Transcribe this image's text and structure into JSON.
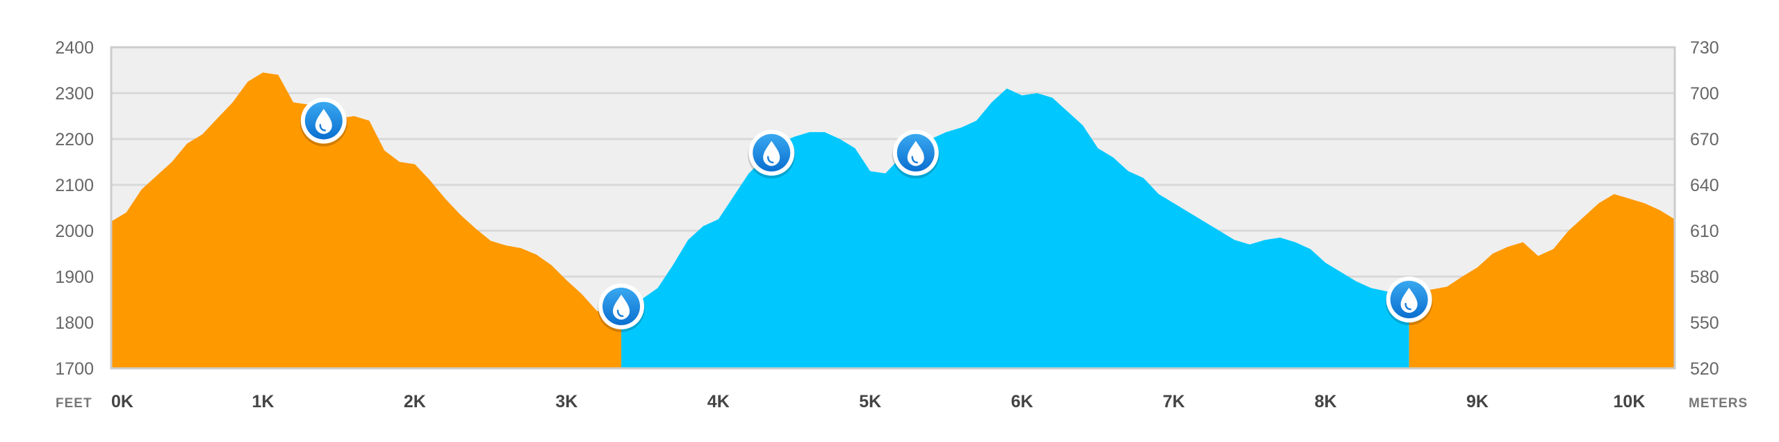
{
  "chart_data": {
    "type": "area",
    "x_unit": "K",
    "xlim": [
      0,
      10.3
    ],
    "x_ticks": [
      0,
      1,
      2,
      3,
      4,
      5,
      6,
      7,
      8,
      9,
      10
    ],
    "x_tick_labels": [
      "0K",
      "1K",
      "2K",
      "3K",
      "4K",
      "5K",
      "6K",
      "7K",
      "8K",
      "9K",
      "10K"
    ],
    "ylim": [
      1700,
      2400
    ],
    "y_ticks": [
      1700,
      1800,
      1900,
      2000,
      2100,
      2200,
      2300,
      2400
    ],
    "y_tick_labels": [
      "1700",
      "1800",
      "1900",
      "2000",
      "2100",
      "2200",
      "2300",
      "2400"
    ],
    "y_left_unit": "FEET",
    "y_right_unit": "METERS",
    "y_right_ticks": [
      "520",
      "550",
      "580",
      "610",
      "640",
      "670",
      "700",
      "730"
    ],
    "grid": true,
    "segment_colors": [
      "#ff9900",
      "#00c8ff",
      "#ff9900"
    ],
    "segment_breaks": [
      3.36,
      8.55
    ],
    "x": [
      0,
      0.1,
      0.2,
      0.3,
      0.4,
      0.5,
      0.6,
      0.7,
      0.8,
      0.9,
      1.0,
      1.1,
      1.2,
      1.3,
      1.4,
      1.5,
      1.6,
      1.7,
      1.8,
      1.9,
      2.0,
      2.1,
      2.2,
      2.3,
      2.4,
      2.5,
      2.6,
      2.7,
      2.8,
      2.9,
      3.0,
      3.1,
      3.2,
      3.3,
      3.4,
      3.5,
      3.6,
      3.7,
      3.8,
      3.9,
      4.0,
      4.1,
      4.2,
      4.3,
      4.4,
      4.5,
      4.6,
      4.7,
      4.8,
      4.9,
      5.0,
      5.1,
      5.2,
      5.3,
      5.4,
      5.5,
      5.6,
      5.7,
      5.8,
      5.9,
      6.0,
      6.1,
      6.2,
      6.3,
      6.4,
      6.5,
      6.6,
      6.7,
      6.8,
      6.9,
      7.0,
      7.1,
      7.2,
      7.3,
      7.4,
      7.5,
      7.6,
      7.7,
      7.8,
      7.9,
      8.0,
      8.1,
      8.2,
      8.3,
      8.4,
      8.5,
      8.6,
      8.7,
      8.8,
      8.9,
      9.0,
      9.1,
      9.2,
      9.3,
      9.4,
      9.5,
      9.6,
      9.7,
      9.8,
      9.9,
      10.0,
      10.1,
      10.2,
      10.3
    ],
    "y": [
      2020,
      2040,
      2090,
      2120,
      2150,
      2190,
      2210,
      2245,
      2280,
      2325,
      2345,
      2340,
      2280,
      2275,
      2250,
      2245,
      2250,
      2240,
      2175,
      2150,
      2145,
      2110,
      2070,
      2035,
      2005,
      1978,
      1968,
      1962,
      1948,
      1925,
      1892,
      1862,
      1825,
      1822,
      1838,
      1852,
      1875,
      1925,
      1980,
      2010,
      2025,
      2075,
      2125,
      2158,
      2190,
      2205,
      2215,
      2215,
      2200,
      2180,
      2130,
      2125,
      2160,
      2175,
      2200,
      2215,
      2225,
      2240,
      2280,
      2310,
      2295,
      2300,
      2290,
      2260,
      2230,
      2180,
      2160,
      2130,
      2115,
      2080,
      2060,
      2040,
      2020,
      2000,
      1980,
      1970,
      1980,
      1985,
      1975,
      1960,
      1930,
      1910,
      1890,
      1875,
      1868,
      1862,
      1868,
      1872,
      1878,
      1900,
      1920,
      1950,
      1965,
      1975,
      1945,
      1960,
      2000,
      2030,
      2060,
      2080,
      2070,
      2060,
      2045,
      2025
    ],
    "markers": [
      {
        "x": 1.4,
        "y": 2240,
        "icon": "water-drop-icon"
      },
      {
        "x": 3.36,
        "y": 1835,
        "icon": "water-drop-icon"
      },
      {
        "x": 4.35,
        "y": 2170,
        "icon": "water-drop-icon"
      },
      {
        "x": 5.3,
        "y": 2170,
        "icon": "water-drop-icon"
      },
      {
        "x": 8.55,
        "y": 1850,
        "icon": "water-drop-icon"
      }
    ]
  }
}
